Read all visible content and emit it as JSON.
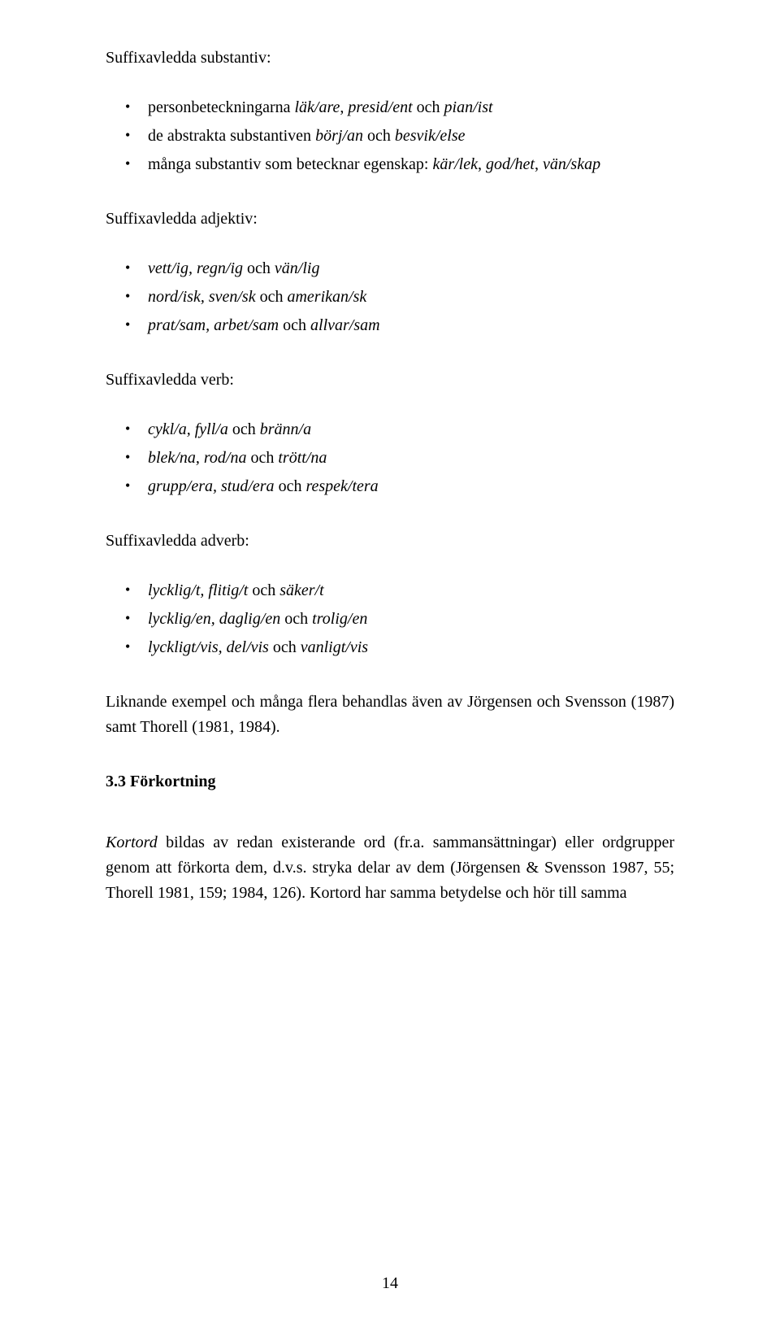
{
  "sections": {
    "substantiv": {
      "label": "Suffixavledda substantiv:",
      "items": [
        {
          "pre": "personbeteckningarna ",
          "it": "läk/are",
          "mid1": ", ",
          "it2": "presid/ent",
          "mid2": " och ",
          "it3": "pian/ist",
          "post": ""
        },
        {
          "pre": "de abstrakta substantiven ",
          "it": "börj/an",
          "mid1": " och ",
          "it2": "besvik/else",
          "mid2": "",
          "it3": "",
          "post": ""
        },
        {
          "pre": "många substantiv som betecknar egenskap: ",
          "it": "kär/lek",
          "mid1": ", ",
          "it2": "god/het",
          "mid2": ", ",
          "it3": "vän/skap",
          "post": ""
        }
      ]
    },
    "adjektiv": {
      "label": "Suffixavledda adjektiv:",
      "items": [
        {
          "it": "vett/ig, regn/ig",
          "mid": " och ",
          "it2": "vän/lig"
        },
        {
          "it": "nord/isk, sven/sk",
          "mid": " och ",
          "it2": "amerikan/sk"
        },
        {
          "it": "prat/sam, arbet/sam",
          "mid": " och ",
          "it2": "allvar/sam"
        }
      ]
    },
    "verb": {
      "label": "Suffixavledda verb:",
      "items": [
        {
          "it": "cykl/a, fyll/a",
          "mid": " och ",
          "it2": "bränn/a"
        },
        {
          "it": "blek/na, rod/na",
          "mid": " och ",
          "it2": "trött/na"
        },
        {
          "it": "grupp/era, stud/era",
          "mid": " och ",
          "it2": "respek/tera"
        }
      ]
    },
    "adverb": {
      "label": "Suffixavledda adverb:",
      "items": [
        {
          "it": "lycklig/t, flitig/t",
          "mid": " och ",
          "it2": "säker/t"
        },
        {
          "it": "lycklig/en, daglig/en",
          "mid": " och ",
          "it2": "trolig/en"
        },
        {
          "it": "lyckligt/vis, del/vis",
          "mid": " och ",
          "it2": "vanligt/vis"
        }
      ]
    }
  },
  "para1": "Liknande exempel och många flera behandlas även av Jörgensen och Svensson (1987) samt Thorell (1981, 1984).",
  "heading": "3.3 Förkortning",
  "para2_a": "Kortord",
  "para2_b": " bildas av redan existerande ord (fr.a. sammansättningar) eller ordgrupper genom att förkorta dem, d.v.s. stryka delar av dem (Jörgensen & Svensson 1987, 55; Thorell 1981, 159; 1984, 126). Kortord har samma betydelse och hör till samma",
  "page_number": "14"
}
